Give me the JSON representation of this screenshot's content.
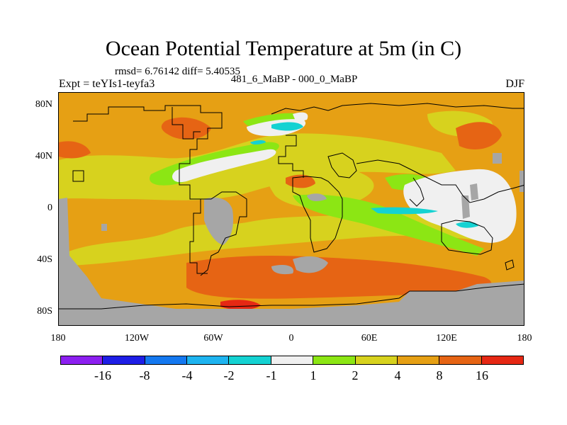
{
  "title": "Ocean Potential Temperature at 5m (in C)",
  "stats_line": "rmsd= 6.76142 diff= 5.40535",
  "period_line": "481_6_MaBP - 000_0_MaBP",
  "experiment_label": "Expt = teYIs1-teyfa3",
  "season_label": "DJF",
  "lat_ticks": [
    "80N",
    "40N",
    "0",
    "40S",
    "80S"
  ],
  "lon_ticks": [
    "180",
    "120W",
    "60W",
    "0",
    "60E",
    "120E",
    "180"
  ],
  "legend": {
    "labels": [
      "-16",
      "-8",
      "-4",
      "-2",
      "-1",
      "1",
      "2",
      "4",
      "8",
      "16"
    ],
    "colors": [
      "#8c1ff0",
      "#1e1ee6",
      "#1478f0",
      "#1eb4f0",
      "#14d2d2",
      "#f0f0f0",
      "#8ce614",
      "#d7d21e",
      "#e6a014",
      "#e66414",
      "#e62814"
    ]
  },
  "map_colors": {
    "land": "#a6a6a6",
    "background_anomaly": "#e6a014"
  }
}
